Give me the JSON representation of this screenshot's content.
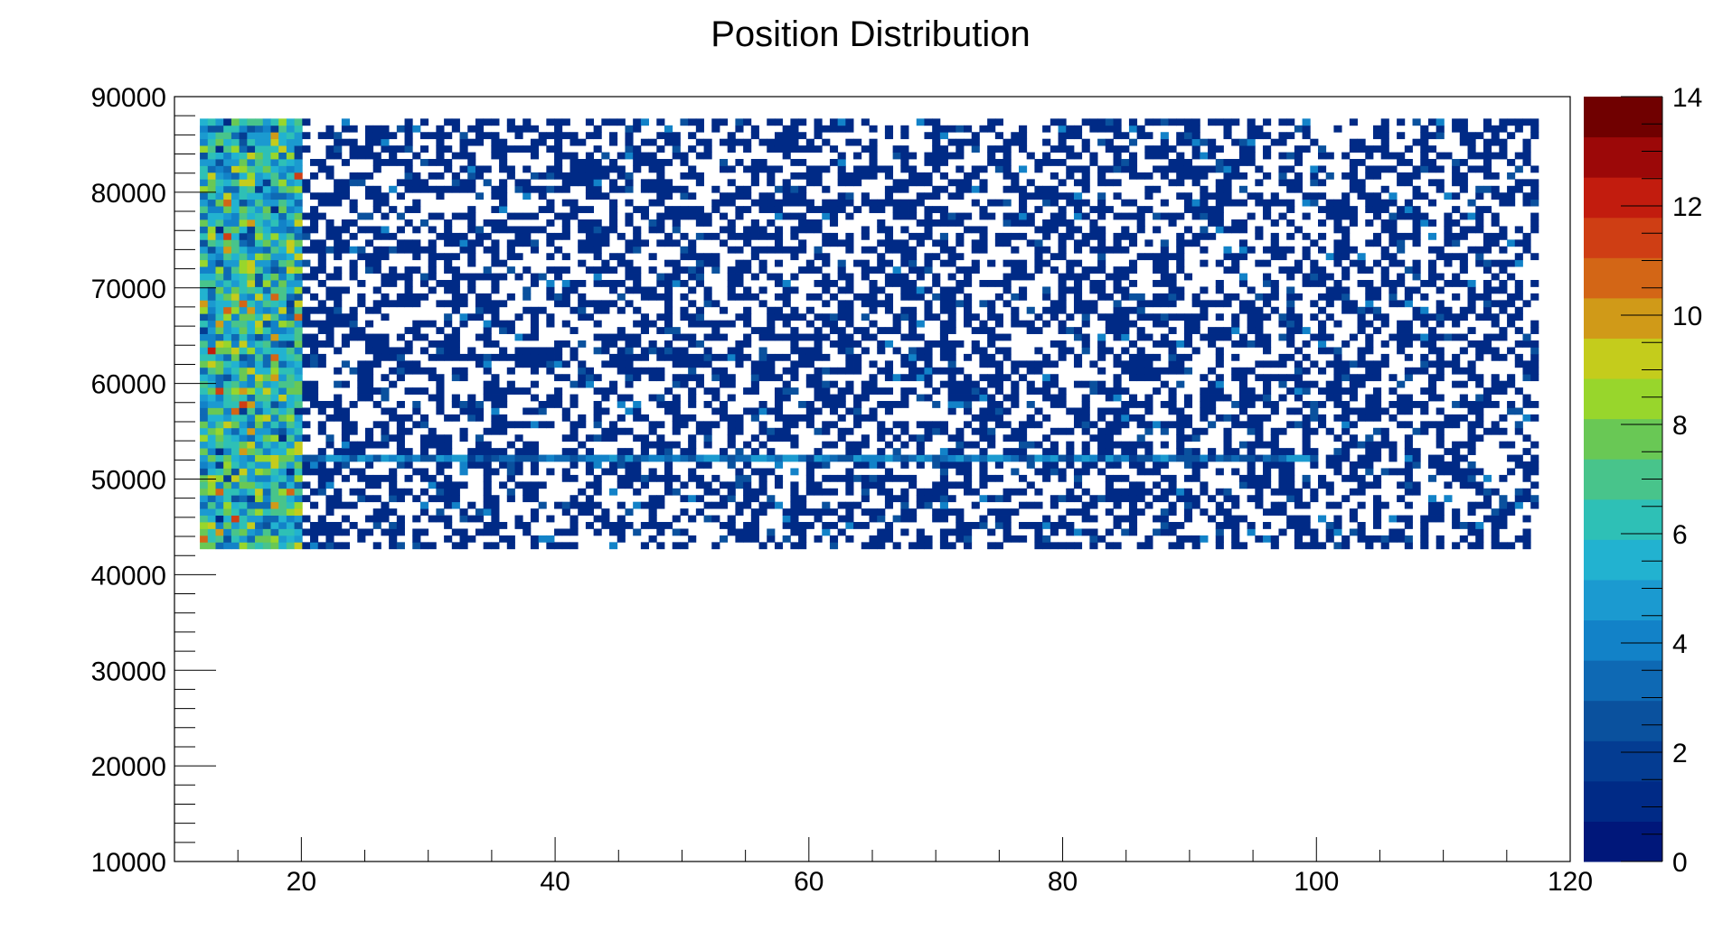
{
  "chart_data": {
    "type": "heatmap",
    "title": "Position Distribution",
    "xlabel": "",
    "ylabel": "",
    "xlim": [
      10,
      120
    ],
    "ylim": [
      10000,
      90000
    ],
    "x_ticks": [
      "20",
      "40",
      "60",
      "80",
      "100",
      "120"
    ],
    "y_ticks": [
      "10000",
      "20000",
      "30000",
      "40000",
      "50000",
      "60000",
      "70000",
      "80000",
      "90000"
    ],
    "zlim": [
      0,
      14
    ],
    "z_ticks": [
      "0",
      "2",
      "4",
      "6",
      "8",
      "10",
      "12",
      "14"
    ],
    "data_region": {
      "x": [
        12,
        117.5
      ],
      "y": [
        42700,
        87700
      ]
    },
    "bin_counts": {
      "x": 170,
      "y": 64
    },
    "bands": [
      {
        "x": [
          12,
          20
        ],
        "fill_fraction": 1.0,
        "z_mean": 6,
        "z_spread": 3
      },
      {
        "x": [
          20,
          117.5
        ],
        "fill_fraction": 0.5,
        "z_mean": 1,
        "z_spread": 1
      }
    ],
    "ridge": {
      "x": [
        20,
        100
      ],
      "y": 52000,
      "z_mean": 4
    },
    "grid": false,
    "legend": "color-bar-right",
    "palette": [
      "#00177a",
      "#002a86",
      "#043c92",
      "#0a519e",
      "#0e69b4",
      "#1282c8",
      "#1b9ad0",
      "#22b2d0",
      "#2ec0b6",
      "#48c48b",
      "#69c855",
      "#98d62c",
      "#c4cc1c",
      "#d09a18",
      "#d36616",
      "#cf3e14",
      "#c21c0e",
      "#9c0808",
      "#700000"
    ]
  }
}
